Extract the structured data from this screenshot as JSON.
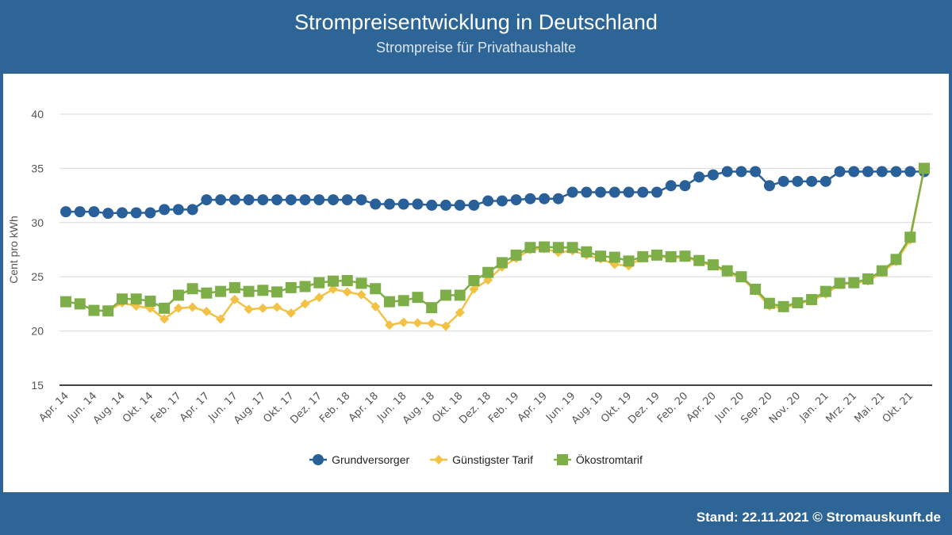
{
  "header": {
    "title": "Strompreisentwicklung in Deutschland",
    "subtitle": "Strompreise für Privathaushalte"
  },
  "footer": {
    "stand": "Stand: 22.11.2021 © Stromauskunft.de"
  },
  "chart_data": {
    "type": "line",
    "title": "Strompreisentwicklung in Deutschland",
    "subtitle": "Strompreise für Privathaushalte",
    "xlabel": "",
    "ylabel": "Cent pro kWh",
    "ylim": [
      15,
      40
    ],
    "yticks": [
      15,
      20,
      25,
      30,
      35,
      40
    ],
    "grid": true,
    "legend": "bottom",
    "categories": [
      "Apr. 14",
      "",
      "Jun. 14",
      "",
      "Aug. 14",
      "",
      "Okt. 14",
      "",
      "Feb. 17",
      "",
      "Apr. 17",
      "",
      "Jun. 17",
      "",
      "Aug. 17",
      "",
      "Okt. 17",
      "",
      "Dez. 17",
      "",
      "Feb. 18",
      "",
      "Apr. 18",
      "",
      "Jun. 18",
      "",
      "Aug. 18",
      "",
      "Okt. 18",
      "",
      "Dez. 18",
      "",
      "Feb. 19",
      "",
      "Apr. 19",
      "",
      "Jun. 19",
      "",
      "Aug. 19",
      "",
      "Okt. 19",
      "",
      "Dez. 19",
      "",
      "Feb. 20",
      "",
      "Apr. 20",
      "",
      "Jun. 20",
      "",
      "Sep. 20",
      "",
      "Nov. 20",
      "",
      "Jan. 21",
      "",
      "Mrz. 21",
      "",
      "Mai. 21",
      "",
      "Okt. 21",
      ""
    ],
    "series": [
      {
        "name": "Grundversorger",
        "color": "#2a6099",
        "marker": "circle",
        "values": [
          31.0,
          31.0,
          31.0,
          30.85,
          30.9,
          30.9,
          30.9,
          31.2,
          31.2,
          31.2,
          32.1,
          32.1,
          32.1,
          32.1,
          32.1,
          32.1,
          32.1,
          32.1,
          32.1,
          32.1,
          32.1,
          32.1,
          31.7,
          31.7,
          31.7,
          31.7,
          31.6,
          31.6,
          31.6,
          31.6,
          32.0,
          32.0,
          32.1,
          32.2,
          32.2,
          32.2,
          32.8,
          32.8,
          32.8,
          32.8,
          32.8,
          32.8,
          32.8,
          33.4,
          33.4,
          34.2,
          34.4,
          34.7,
          34.7,
          34.7,
          33.4,
          33.8,
          33.8,
          33.8,
          33.8,
          34.7,
          34.7,
          34.7,
          34.7,
          34.7,
          34.7,
          34.7
        ]
      },
      {
        "name": "Günstigster Tarif",
        "color": "#f3c143",
        "marker": "diamond",
        "values": [
          22.7,
          22.5,
          21.9,
          21.85,
          22.6,
          22.3,
          22.1,
          21.1,
          22.1,
          22.2,
          21.8,
          21.1,
          22.9,
          22.0,
          22.1,
          22.2,
          21.65,
          22.5,
          23.1,
          23.85,
          23.6,
          23.35,
          22.25,
          20.55,
          20.8,
          20.75,
          20.7,
          20.45,
          21.7,
          23.85,
          24.7,
          25.9,
          26.7,
          27.5,
          27.6,
          27.25,
          27.4,
          27.0,
          26.65,
          26.15,
          26.0,
          26.8,
          26.9,
          26.7,
          26.8,
          26.4,
          26.0,
          25.4,
          24.9,
          23.7,
          22.3,
          22.1,
          22.5,
          22.8,
          23.4,
          24.3,
          24.4,
          24.6,
          25.4,
          26.4,
          28.4,
          35.0
        ]
      },
      {
        "name": "Ökostromtarif",
        "color": "#7dae48",
        "marker": "square",
        "values": [
          22.7,
          22.5,
          21.9,
          21.85,
          22.95,
          22.95,
          22.75,
          22.1,
          23.3,
          23.9,
          23.5,
          23.65,
          24.0,
          23.65,
          23.75,
          23.6,
          24.0,
          24.1,
          24.45,
          24.6,
          24.65,
          24.4,
          23.9,
          22.7,
          22.8,
          23.1,
          22.15,
          23.3,
          23.3,
          24.65,
          25.4,
          26.3,
          27.0,
          27.7,
          27.75,
          27.7,
          27.7,
          27.3,
          26.9,
          26.8,
          26.45,
          26.85,
          27.0,
          26.85,
          26.9,
          26.5,
          26.1,
          25.55,
          25.0,
          23.85,
          22.55,
          22.25,
          22.6,
          22.9,
          23.65,
          24.4,
          24.45,
          24.8,
          25.55,
          26.6,
          28.65,
          35.0
        ]
      }
    ]
  }
}
